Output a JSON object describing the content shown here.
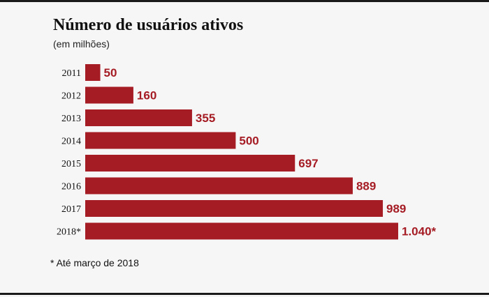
{
  "chart_data": {
    "type": "bar",
    "orientation": "horizontal",
    "title": "Número de usuários ativos",
    "subtitle": "(em milhões)",
    "categories": [
      "2011",
      "2012",
      "2013",
      "2014",
      "2015",
      "2016",
      "2017",
      "2018*"
    ],
    "values": [
      50,
      160,
      355,
      500,
      697,
      889,
      989,
      1040
    ],
    "value_labels": [
      "50",
      "160",
      "355",
      "500",
      "697",
      "889",
      "989",
      "1.040*"
    ],
    "xlim": [
      0,
      1040
    ],
    "grid": false,
    "legend": "none",
    "bar_color": "#a51c24",
    "footnote": "* Até março de 2018"
  }
}
